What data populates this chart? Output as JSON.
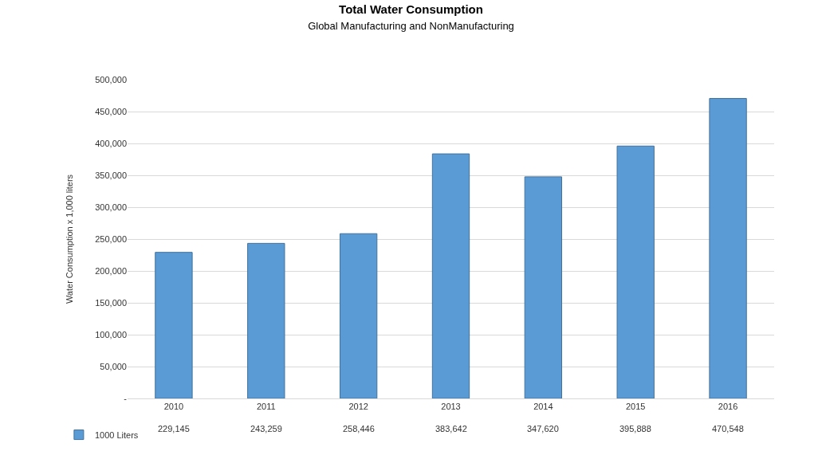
{
  "chart_data": {
    "type": "bar",
    "title": "Total Water Consumption",
    "subtitle": "Global Manufacturing and NonManufacturing",
    "ylabel": "Water Consumption x 1,000 liters",
    "categories": [
      "2010",
      "2011",
      "2012",
      "2013",
      "2014",
      "2015",
      "2016"
    ],
    "series": [
      {
        "name": "1000 Liters",
        "color": "#5b9bd5",
        "values": [
          229145,
          243259,
          258446,
          383642,
          347620,
          395888,
          470548
        ],
        "value_labels": [
          "229,145",
          "243,259",
          "258,446",
          "383,642",
          "347,620",
          "395,888",
          "470,548"
        ]
      }
    ],
    "ylim": [
      0,
      500000
    ],
    "yticks": [
      {
        "value": 0,
        "label": "-"
      },
      {
        "value": 50000,
        "label": "50,000"
      },
      {
        "value": 100000,
        "label": "100,000"
      },
      {
        "value": 150000,
        "label": "150,000"
      },
      {
        "value": 200000,
        "label": "200,000"
      },
      {
        "value": 250000,
        "label": "250,000"
      },
      {
        "value": 300000,
        "label": "300,000"
      },
      {
        "value": 350000,
        "label": "350,000"
      },
      {
        "value": 400000,
        "label": "400,000"
      },
      {
        "value": 450000,
        "label": "450,000"
      },
      {
        "value": 500000,
        "label": "500,000"
      }
    ],
    "grid": true,
    "legend": "bottom left"
  }
}
